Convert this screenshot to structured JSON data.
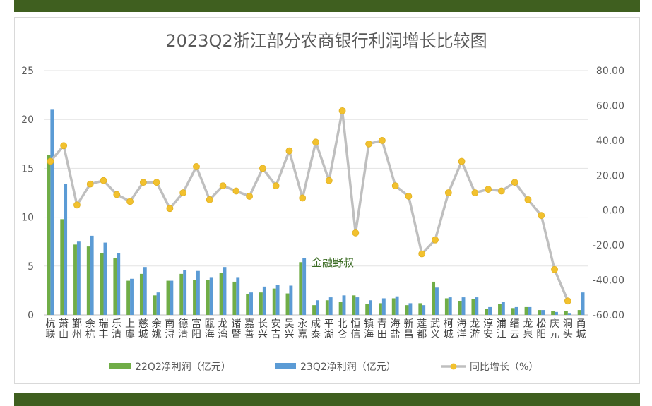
{
  "chart_data": {
    "type": "bar+line",
    "title": "2023Q2浙江部分农商银行利润增长比较图",
    "categories": [
      "杭联",
      "萧山",
      "鄞州",
      "余杭",
      "瑞丰",
      "乐清",
      "上虞",
      "慈城",
      "余姚",
      "南浔",
      "德清",
      "富阳",
      "瓯海",
      "龙湾",
      "诸暨",
      "嘉善",
      "长兴",
      "安吉",
      "吴兴",
      "永嘉",
      "成泰",
      "平湖",
      "北仑",
      "恒信",
      "镇海",
      "青田",
      "海盐",
      "新昌",
      "莲都",
      "武义",
      "柯城",
      "海洋",
      "龙游",
      "淳安",
      "浦江",
      "缙云",
      "龙泉",
      "松阳",
      "庆元",
      "洞头",
      "甬城"
    ],
    "series": [
      {
        "name": "22Q2净利润（亿元）",
        "type": "bar",
        "axis": "left",
        "color": "#70ad47",
        "values": [
          16.4,
          9.8,
          7.2,
          7.0,
          6.3,
          5.8,
          3.5,
          4.2,
          2.0,
          3.5,
          4.2,
          3.6,
          3.6,
          4.3,
          3.4,
          2.1,
          2.3,
          2.7,
          2.2,
          5.4,
          1.0,
          1.5,
          1.3,
          2.0,
          1.1,
          1.2,
          1.7,
          1.0,
          1.2,
          3.4,
          1.7,
          1.4,
          1.6,
          0.6,
          1.1,
          0.7,
          0.8,
          0.5,
          0.4,
          0.4,
          0.5
        ]
      },
      {
        "name": "23Q2净利润（亿元）",
        "type": "bar",
        "axis": "left",
        "color": "#5b9bd5",
        "values": [
          21.0,
          13.4,
          7.5,
          8.1,
          7.4,
          6.3,
          3.7,
          4.9,
          2.3,
          3.5,
          4.6,
          4.5,
          3.8,
          4.9,
          3.8,
          2.3,
          2.9,
          3.1,
          3.0,
          5.8,
          1.5,
          1.8,
          2.0,
          1.8,
          1.5,
          1.7,
          1.9,
          1.2,
          1.0,
          2.8,
          1.8,
          1.8,
          1.8,
          0.8,
          1.3,
          0.8,
          0.8,
          0.5,
          0.3,
          0.2,
          2.3
        ]
      },
      {
        "name": "同比增长（%）",
        "type": "line",
        "axis": "right",
        "color": "#bfbfbf",
        "marker_color": "#f2c12e",
        "values": [
          28.0,
          37.0,
          3.0,
          15.0,
          17.0,
          9.0,
          5.0,
          16.0,
          16.0,
          1.0,
          10.0,
          25.0,
          6.0,
          14.0,
          11.0,
          8.0,
          24.0,
          14.0,
          34.0,
          7.0,
          39.0,
          17.0,
          57.0,
          -13.0,
          38.0,
          40.0,
          14.0,
          8.0,
          -25.0,
          -17.0,
          10.0,
          28.0,
          10.0,
          12.0,
          11.0,
          16.0,
          6.0,
          -3.0,
          -34.0,
          -52.0,
          null
        ]
      }
    ],
    "y_left": {
      "min": 0,
      "max": 25,
      "step": 5,
      "ticks": [
        "0",
        "5",
        "10",
        "15",
        "20",
        "25"
      ]
    },
    "y_right": {
      "min": -60,
      "max": 80,
      "step": 20,
      "ticks": [
        "-60.00",
        "-40.00",
        "-20.00",
        "0.00",
        "20.00",
        "40.00",
        "60.00",
        "80.00"
      ]
    },
    "grid": true,
    "legend_position": "bottom",
    "annotation": "金融野叔"
  }
}
